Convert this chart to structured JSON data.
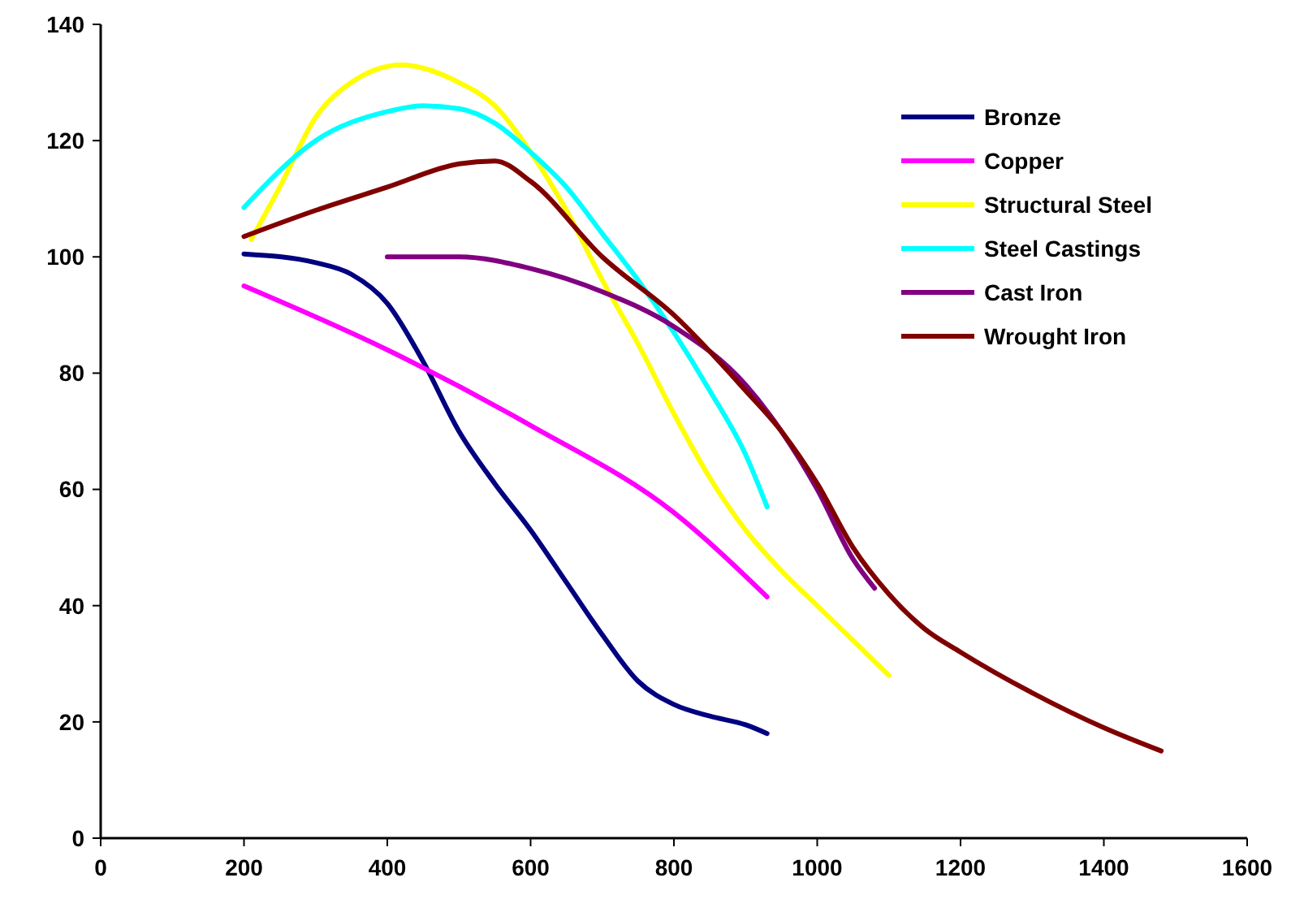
{
  "chart_data": {
    "type": "line",
    "xlim": [
      0,
      1600
    ],
    "xticks": [
      0,
      200,
      400,
      600,
      800,
      1000,
      1200,
      1400,
      1600
    ],
    "ylim": [
      0,
      140
    ],
    "yticks": [
      0,
      20,
      40,
      60,
      80,
      100,
      120,
      140
    ],
    "grid": false,
    "legend": "top right",
    "marker": "none",
    "line_style": "solid",
    "series": [
      {
        "name": "Bronze",
        "color": "#000080",
        "x": [
          200,
          300,
          350,
          400,
          450,
          500,
          550,
          600,
          650,
          700,
          750,
          800,
          850,
          900,
          930
        ],
        "values": [
          100.5,
          99,
          97,
          92,
          82,
          70,
          61,
          53,
          44,
          35,
          27,
          23,
          21,
          19.5,
          18
        ]
      },
      {
        "name": "Copper",
        "color": "#ff00ff",
        "x": [
          200,
          400,
          600,
          800,
          930
        ],
        "values": [
          95,
          84,
          71,
          56,
          41.5
        ]
      },
      {
        "name": "Structural Steel",
        "color": "#ffff00",
        "x": [
          210,
          250,
          300,
          350,
          420,
          500,
          550,
          600,
          650,
          700,
          750,
          800,
          850,
          900,
          950,
          1000,
          1050,
          1100
        ],
        "values": [
          103,
          112,
          124,
          130,
          133,
          130,
          126,
          118,
          108,
          96,
          85,
          73,
          62,
          53,
          46,
          40,
          34,
          28
        ]
      },
      {
        "name": "Steel Castings",
        "color": "#00ffff",
        "x": [
          200,
          300,
          400,
          450,
          500,
          550,
          600,
          650,
          700,
          750,
          800,
          850,
          900,
          930
        ],
        "values": [
          108.5,
          120,
          125,
          126,
          125.5,
          123,
          118,
          112,
          104,
          96,
          87,
          77,
          66,
          57
        ]
      },
      {
        "name": "Cast Iron",
        "color": "#800080",
        "x": [
          400,
          500,
          600,
          700,
          800,
          900,
          950,
          1000,
          1050,
          1080
        ],
        "values": [
          100,
          100,
          98,
          94,
          88,
          78,
          70,
          60,
          48,
          43
        ]
      },
      {
        "name": "Wrought Iron",
        "color": "#800000",
        "x": [
          200,
          300,
          400,
          500,
          550,
          600,
          700,
          800,
          900,
          950,
          1000,
          1050,
          1100,
          1150,
          1200,
          1300,
          1400,
          1480
        ],
        "values": [
          103.5,
          108,
          112,
          116,
          116.5,
          113,
          100,
          90,
          77,
          70,
          61,
          50,
          42,
          36,
          32,
          25,
          19,
          15
        ]
      }
    ]
  }
}
